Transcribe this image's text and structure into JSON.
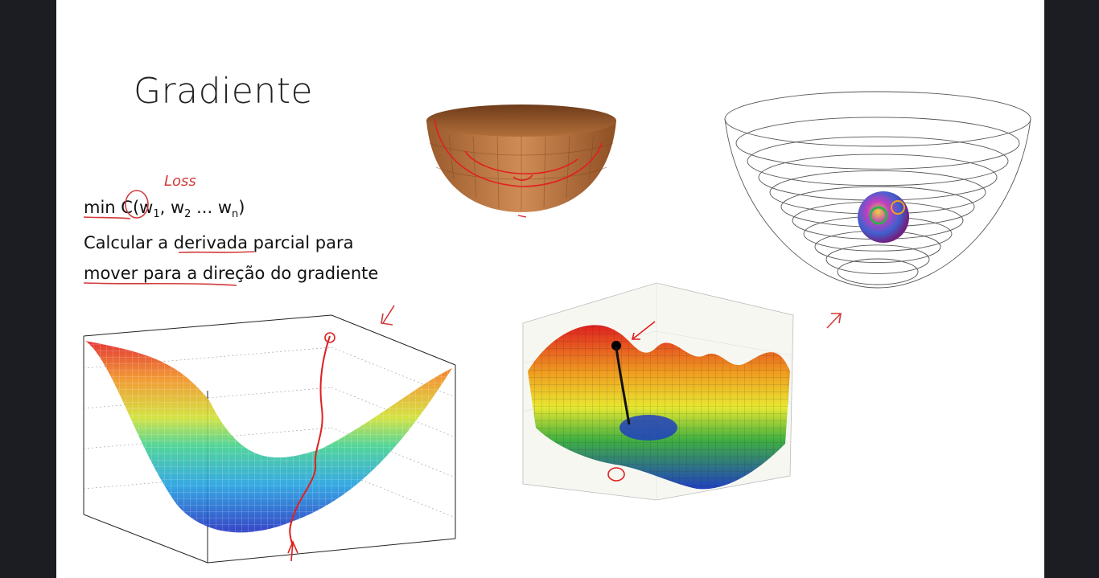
{
  "slide": {
    "title": "Gradiente",
    "formula": {
      "prefix": "min",
      "func": "C(",
      "w": "w",
      "s1": "1",
      "sep1": ", ",
      "s2": "2",
      "ellipsis": " ... ",
      "sn": "n",
      "close": ")"
    },
    "line2": {
      "a": "Calcular a ",
      "b": "derivada",
      "c": " parcial para"
    },
    "line3": {
      "a": "mover para a dire",
      "b": "ção do gradiente"
    },
    "annotation": "Loss"
  },
  "colors": {
    "background": "#1b1d22",
    "slide": "#ffffff",
    "ink": "#d23a3a"
  }
}
